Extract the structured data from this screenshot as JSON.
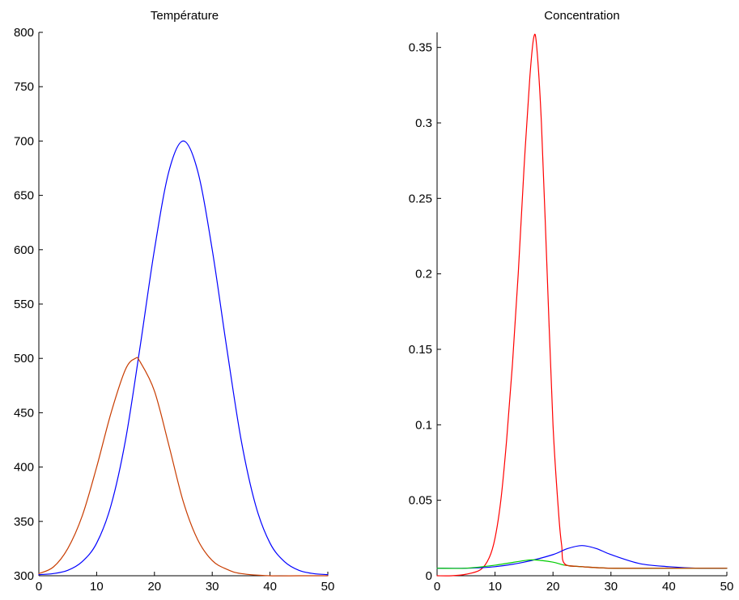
{
  "chart_data": [
    {
      "type": "line",
      "title": "Température",
      "xlabel": "",
      "ylabel": "",
      "xlim": [
        0,
        50
      ],
      "ylim": [
        300,
        800
      ],
      "grid": false,
      "x_ticks": [
        0,
        10,
        20,
        30,
        40,
        50
      ],
      "y_ticks": [
        300,
        350,
        400,
        450,
        500,
        550,
        600,
        650,
        700,
        750,
        800
      ],
      "x_tick_labels": [
        "0",
        "10",
        "20",
        "30",
        "40",
        "50"
      ],
      "y_tick_labels": [
        "300",
        "350",
        "400",
        "450",
        "500",
        "550",
        "600",
        "650",
        "700",
        "750",
        "800"
      ],
      "series": [
        {
          "color": "#0000ff",
          "x": [
            0,
            2.5,
            5,
            7.5,
            10,
            12.5,
            15,
            17.5,
            20,
            22.5,
            25,
            27.5,
            30,
            32.5,
            35,
            37.5,
            40,
            42.5,
            45,
            47.5,
            50
          ],
          "y": [
            301,
            302,
            305,
            313,
            330,
            365,
            425,
            510,
            600,
            672,
            700,
            672,
            600,
            510,
            425,
            365,
            330,
            313,
            305,
            302,
            301
          ]
        },
        {
          "color": "#c83c00",
          "x": [
            0,
            2.5,
            5,
            7.5,
            10,
            12.5,
            15,
            16.7,
            17.5,
            20,
            22.5,
            25,
            27.5,
            30,
            32.5,
            35,
            40,
            45,
            50
          ],
          "y": [
            302,
            308,
            325,
            355,
            400,
            450,
            490,
            500,
            497,
            470,
            420,
            368,
            333,
            314,
            306,
            302,
            300,
            300,
            300
          ]
        }
      ]
    },
    {
      "type": "line",
      "title": "Concentration",
      "xlabel": "",
      "ylabel": "",
      "xlim": [
        0,
        50
      ],
      "ylim": [
        0,
        0.36
      ],
      "grid": false,
      "x_ticks": [
        0,
        10,
        20,
        30,
        40,
        50
      ],
      "y_ticks": [
        0,
        0.05,
        0.1,
        0.15,
        0.2,
        0.25,
        0.3,
        0.35
      ],
      "x_tick_labels": [
        "0",
        "10",
        "20",
        "30",
        "40",
        "50"
      ],
      "y_tick_labels": [
        "0",
        "0.05",
        "0.1",
        "0.15",
        "0.2",
        "0.25",
        "0.3",
        "0.35"
      ],
      "series": [
        {
          "color": "#ff0000",
          "x": [
            0,
            2.5,
            5,
            7.5,
            9,
            10,
            11,
            12,
            13,
            14,
            15,
            16,
            16.7,
            17.2,
            18,
            19,
            20,
            21,
            21.5,
            22,
            25,
            30,
            40,
            50
          ],
          "y": [
            0,
            0,
            0.001,
            0.004,
            0.012,
            0.025,
            0.05,
            0.09,
            0.14,
            0.2,
            0.27,
            0.33,
            0.357,
            0.35,
            0.3,
            0.2,
            0.1,
            0.04,
            0.02,
            0.008,
            0.006,
            0.005,
            0.005,
            0.005
          ]
        },
        {
          "color": "#0000ff",
          "x": [
            0,
            5,
            10,
            15,
            20,
            22.5,
            25,
            27.5,
            30,
            35,
            40,
            45,
            50
          ],
          "y": [
            0.005,
            0.005,
            0.006,
            0.009,
            0.014,
            0.018,
            0.02,
            0.018,
            0.014,
            0.008,
            0.006,
            0.005,
            0.005
          ]
        },
        {
          "color": "#00cc00",
          "x": [
            0,
            5,
            10,
            15,
            16.7,
            20,
            22,
            25,
            30,
            40,
            50
          ],
          "y": [
            0.005,
            0.005,
            0.007,
            0.01,
            0.0105,
            0.009,
            0.007,
            0.006,
            0.005,
            0.005,
            0.005
          ]
        },
        {
          "color": "#c83c00",
          "x": [
            22,
            25,
            30,
            35,
            40,
            45,
            50
          ],
          "y": [
            0.007,
            0.006,
            0.005,
            0.005,
            0.005,
            0.005,
            0.005
          ]
        }
      ]
    }
  ]
}
